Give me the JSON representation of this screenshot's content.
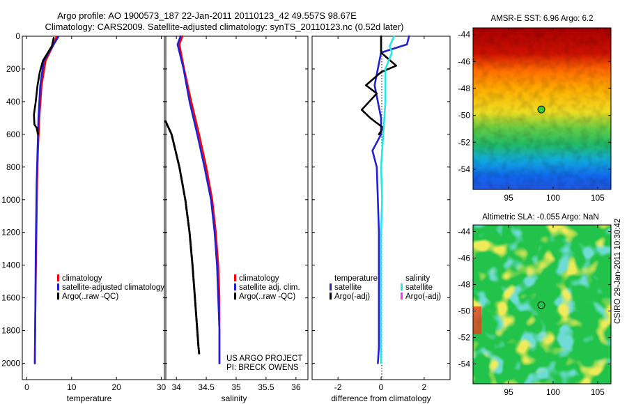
{
  "header": {
    "title_line1": "Argo profile: AO 1900573_187 22-Jan-2011 20110123_42 49.557S 98.67E",
    "title_line2": "Climatology: CARS2009. Satellite-adjusted climatology: synTS_20110123.nc (0.52d later)"
  },
  "side_label": "CSIRO 29-Jan-2011 10:30:42",
  "colors": {
    "climatology": "#ff0000",
    "satellite": "#1f1fd6",
    "argo": "#000000",
    "satellite_salinity": "#27e6e6",
    "argo_salinity": "#ff33ff"
  },
  "chart_data": [
    {
      "type": "line",
      "id": "temperature",
      "xlabel": "temperature",
      "ylabel": "",
      "xlim": [
        -1,
        31
      ],
      "ylim": [
        2100,
        0
      ],
      "xticks": [
        0,
        10,
        20,
        30
      ],
      "yticks": [
        0,
        200,
        400,
        600,
        800,
        1000,
        1200,
        1400,
        1600,
        1800,
        2000
      ],
      "legend": [
        "climatology",
        "satellite-adjusted climatology",
        "Argo(..raw -QC)"
      ],
      "legend_position": "lower-right",
      "series": [
        {
          "name": "climatology",
          "color_key": "climatology",
          "style": "solid",
          "x": [
            6.6,
            6.0,
            4.2,
            3.3,
            2.8,
            2.5,
            2.3,
            2.2,
            2.1,
            2.0,
            1.9,
            1.85,
            1.8
          ],
          "y": [
            5,
            50,
            150,
            300,
            500,
            700,
            900,
            1100,
            1300,
            1500,
            1700,
            1850,
            2000
          ]
        },
        {
          "name": "satellite-adjusted climatology",
          "color_key": "satellite",
          "style": "solid",
          "x": [
            7.0,
            6.0,
            3.8,
            3.0,
            2.6,
            2.4,
            2.2,
            2.1,
            2.0,
            1.95,
            1.9,
            1.85,
            1.8
          ],
          "y": [
            5,
            50,
            150,
            300,
            500,
            700,
            900,
            1100,
            1300,
            1500,
            1700,
            1850,
            2000
          ]
        },
        {
          "name": "Argo(..raw -QC)",
          "color_key": "argo",
          "style": "solid",
          "x": [
            6.0,
            5.6,
            3.6,
            2.9,
            2.4,
            2.0,
            1.6,
            1.7,
            2.2,
            2.5
          ],
          "y": [
            10,
            60,
            150,
            220,
            300,
            400,
            480,
            540,
            560,
            600
          ]
        }
      ]
    },
    {
      "type": "line",
      "id": "salinity",
      "xlabel": "salinity",
      "ylabel": "",
      "xlim": [
        33.8,
        36.2
      ],
      "ylim": [
        2100,
        0
      ],
      "xticks": [
        34,
        34.5,
        35,
        35.5,
        36
      ],
      "yticks": [
        0,
        200,
        400,
        600,
        800,
        1000,
        1200,
        1400,
        1600,
        1800,
        2000
      ],
      "legend": [
        "climatology",
        "satellite adj. clim.",
        "Argo(..raw -QC)"
      ],
      "legend_position": "lower-right",
      "annotation": [
        "US ARGO PROJECT",
        "PI: BRECK OWENS"
      ],
      "series": [
        {
          "name": "climatology",
          "color_key": "climatology",
          "style": "solid",
          "x": [
            34.1,
            34.05,
            34.13,
            34.25,
            34.38,
            34.5,
            34.6,
            34.66,
            34.7,
            34.72,
            34.72,
            34.72
          ],
          "y": [
            0,
            50,
            200,
            400,
            600,
            800,
            1000,
            1200,
            1400,
            1600,
            1800,
            2000
          ]
        },
        {
          "name": "satellite adj. clim.",
          "color_key": "satellite",
          "style": "solid",
          "x": [
            34.07,
            34.02,
            34.12,
            34.22,
            34.35,
            34.47,
            34.58,
            34.64,
            34.68,
            34.7,
            34.72,
            34.72
          ],
          "y": [
            0,
            50,
            200,
            400,
            600,
            800,
            1000,
            1200,
            1400,
            1600,
            1800,
            2000
          ]
        },
        {
          "name": "Argo(..raw -QC)",
          "color_key": "argo",
          "style": "dashdot",
          "x": [
            33.82,
            33.92,
            34.05,
            34.15,
            34.22,
            34.27,
            34.31,
            34.35,
            34.37,
            34.38
          ],
          "y": [
            520,
            600,
            800,
            1000,
            1200,
            1400,
            1600,
            1800,
            1900,
            1940
          ]
        }
      ]
    },
    {
      "type": "line",
      "id": "difference",
      "xlabel": "difference from climatology",
      "ylabel": "",
      "xlim": [
        -3.2,
        3.2
      ],
      "ylim": [
        2100,
        0
      ],
      "xticks": [
        -2,
        0,
        2
      ],
      "yticks": [
        0,
        200,
        400,
        600,
        800,
        1000,
        1200,
        1400,
        1600,
        1800,
        2000
      ],
      "legend_groups": [
        {
          "heading": "temperature",
          "items": [
            "satellite",
            "Argo(-adj)"
          ]
        },
        {
          "heading": "salinity",
          "items": [
            "satellite",
            "Argo(-adj)"
          ]
        }
      ],
      "legend_position": "lower-center",
      "series": [
        {
          "name": "temperature satellite",
          "color_key": "satellite",
          "style": "solid",
          "x": [
            1.3,
            1.2,
            0.0,
            -0.3,
            0.0,
            0.0,
            -0.4,
            -0.2,
            -0.15,
            -0.1,
            -0.1,
            -0.1,
            -0.1,
            -0.1,
            -0.15
          ],
          "y": [
            0,
            50,
            100,
            300,
            500,
            600,
            700,
            800,
            1000,
            1200,
            1400,
            1600,
            1800,
            1900,
            2000
          ]
        },
        {
          "name": "temperature Argo(-adj)",
          "color_key": "argo",
          "style": "solid",
          "x": [
            0.0,
            0.0,
            0.7,
            0.0,
            -0.7,
            -0.2,
            -0.9,
            -0.5,
            -0.3,
            0.1,
            -0.1
          ],
          "y": [
            0,
            100,
            180,
            220,
            300,
            350,
            450,
            500,
            520,
            560,
            600
          ]
        },
        {
          "name": "salinity satellite",
          "color_key": "satellite_salinity",
          "style": "solid",
          "x": [
            0.6,
            0.4,
            0.5,
            0.2,
            0.2,
            0.1,
            0.0,
            0.05,
            0.0,
            0.0,
            0.0,
            0.0
          ],
          "y": [
            0,
            60,
            100,
            200,
            400,
            600,
            800,
            1000,
            1200,
            1400,
            1800,
            2000
          ]
        }
      ]
    },
    {
      "type": "heatmap",
      "id": "amsr-e-sst",
      "title": "AMSR-E SST: 6.96 Argo: 6.2",
      "xlim": [
        91,
        106.5
      ],
      "ylim": [
        -55.5,
        -43.5
      ],
      "xticks": [
        95,
        100,
        105
      ],
      "yticks": [
        -44,
        -46,
        -48,
        -50,
        -52,
        -54
      ],
      "marker": {
        "lon": 98.67,
        "lat": -49.557
      }
    },
    {
      "type": "heatmap",
      "id": "altimetric-sla",
      "title": "Altimetric SLA: -0.055 Argo: NaN",
      "xlim": [
        91,
        106.5
      ],
      "ylim": [
        -55.5,
        -43.5
      ],
      "xticks": [
        95,
        100,
        105
      ],
      "yticks": [
        -44,
        -46,
        -48,
        -50,
        -52,
        -54
      ],
      "marker": {
        "lon": 98.67,
        "lat": -49.557
      }
    }
  ]
}
